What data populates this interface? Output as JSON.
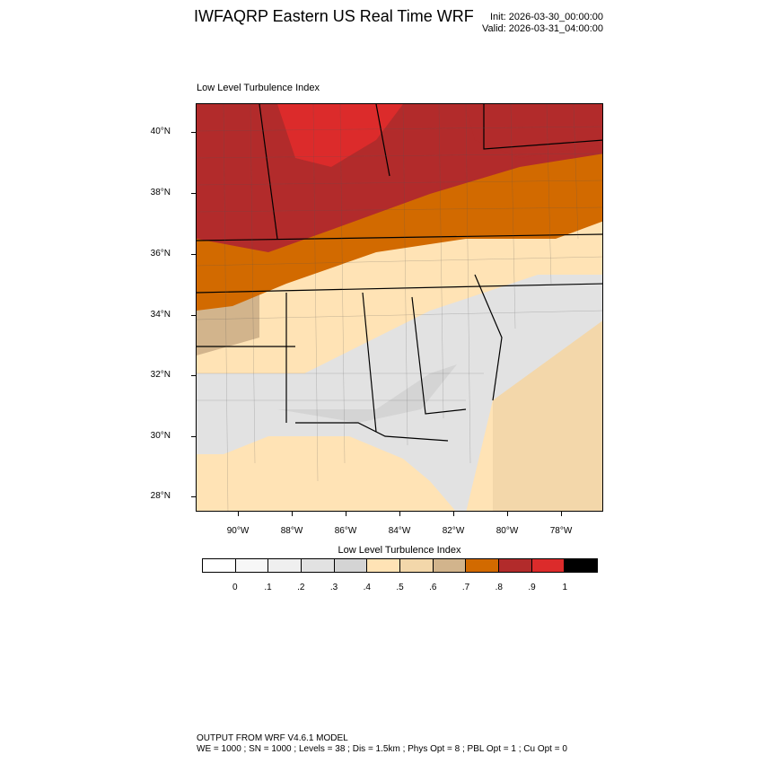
{
  "title": "IWFAQRP Eastern US Real Time WRF",
  "init": "Init: 2026-03-30_00:00:00",
  "valid": "Valid: 2026-03-31_04:00:00",
  "map": {
    "variable_label": "Low Level Turbulence Index",
    "lat_labels": [
      "40°N",
      "38°N",
      "36°N",
      "34°N",
      "32°N",
      "30°N",
      "28°N"
    ],
    "lon_labels": [
      "90°W",
      "88°W",
      "86°W",
      "84°W",
      "82°W",
      "80°W",
      "78°W"
    ]
  },
  "colorbar": {
    "title": "Low Level Turbulence Index",
    "labels": [
      "0",
      ".1",
      ".2",
      ".3",
      ".4",
      ".5",
      ".6",
      ".7",
      ".8",
      ".9",
      "1"
    ],
    "colors": [
      "#ffffff",
      "#f7f7f7",
      "#efefef",
      "#e2e2e2",
      "#d4d4d4",
      "#ffe3b5",
      "#f3d7aa",
      "#d2b48c",
      "#d26a00",
      "#b22b2b",
      "#dc2b2b",
      "#000000"
    ]
  },
  "footer": {
    "line1": "OUTPUT FROM WRF V4.6.1 MODEL",
    "line2": "WE = 1000 ; SN = 1000 ; Levels = 38 ; Dis = 1.5km ; Phys Opt = 8 ; PBL Opt = 1 ; Cu Opt = 0"
  }
}
